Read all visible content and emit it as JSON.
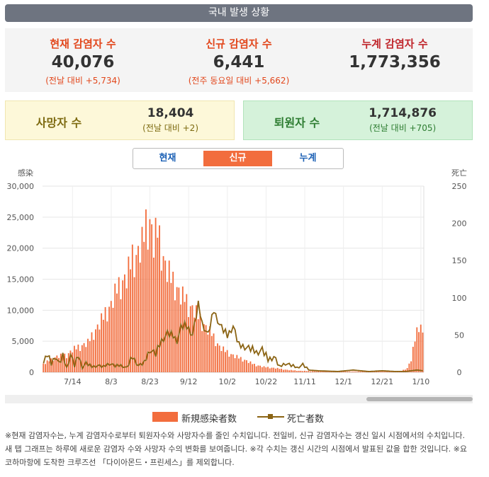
{
  "header": {
    "title": "국내 발생 상황"
  },
  "summary": {
    "current": {
      "label": "현재 감염자 수",
      "value": "40,076",
      "sub": "(전날 대비 +5,734)"
    },
    "new": {
      "label": "신규 감염자 수",
      "value": "6,441",
      "sub": "(전주 동요일 대비 +5,662)"
    },
    "total": {
      "label": "누계 감염자 수",
      "value": "1,773,356"
    }
  },
  "deaths": {
    "label": "사망자 수",
    "value": "18,404",
    "sub": "(전날 대비 +2)"
  },
  "recovered": {
    "label": "퇴원자 수",
    "value": "1,714,876",
    "sub": "(전날 대비 +705)"
  },
  "tabs": {
    "current": "현재",
    "new": "신규",
    "total": "누계",
    "active": "new"
  },
  "legend": {
    "bars": "新規感染者数",
    "line": "死亡者数"
  },
  "note": "※현재 감염자수는, 누계 감염자수로부터 퇴원자수와 사망자수를 줄인 수치입니다. 전일비, 신규 감염자수는 갱신 일시 시점에서의 수치입니다. 새 탭 그래프는 하루에 새로운 감염자 수와 사망자 수의 변화를 보여줍니다. ※각 수치는 갱신 시간의 시점에서 발표된 값을 합한 것입니다. ※요코하마항에 도착한 크루즈선 「다이아몬드・프린세스」를 제외합니다.",
  "colors": {
    "bar": "#f26d3d",
    "line": "#8b6414",
    "red": "#e2471c",
    "darkred": "#c0262c",
    "olive": "#7d6a10",
    "green": "#2e7d32"
  },
  "chart_data": {
    "type": "bar",
    "title": "",
    "left_axis_label": "感染",
    "right_axis_label": "死亡",
    "ylim_left": [
      0,
      30000
    ],
    "ylim_right": [
      0,
      250
    ],
    "left_ticks": [
      "0",
      "5,000",
      "10,000",
      "15,000",
      "20,000",
      "25,000",
      "30,000"
    ],
    "right_ticks": [
      "0",
      "50",
      "100",
      "150",
      "200",
      "250"
    ],
    "x_ticks": [
      "7/14",
      "8/3",
      "8/23",
      "9/12",
      "10/2",
      "10/22",
      "11/11",
      "12/1",
      "12/21",
      "1/10"
    ],
    "x_tick_index": [
      15,
      35,
      55,
      75,
      95,
      115,
      135,
      155,
      175,
      195
    ],
    "bar_anchors": [
      [
        0,
        1400
      ],
      [
        7,
        2700
      ],
      [
        12,
        2900
      ],
      [
        15,
        3800
      ],
      [
        19,
        4400
      ],
      [
        23,
        5000
      ],
      [
        26,
        6700
      ],
      [
        29,
        8200
      ],
      [
        32,
        10000
      ],
      [
        35,
        11500
      ],
      [
        38,
        14100
      ],
      [
        40,
        15100
      ],
      [
        43,
        16100
      ],
      [
        46,
        19600
      ],
      [
        48,
        19700
      ],
      [
        51,
        21700
      ],
      [
        53,
        25000
      ],
      [
        55,
        25700
      ],
      [
        57,
        22000
      ],
      [
        59,
        24100
      ],
      [
        61,
        21000
      ],
      [
        63,
        18000
      ],
      [
        66,
        16000
      ],
      [
        69,
        14300
      ],
      [
        71,
        13000
      ],
      [
        73,
        12600
      ],
      [
        75,
        11400
      ],
      [
        78,
        10500
      ],
      [
        81,
        9000
      ],
      [
        84,
        7600
      ],
      [
        87,
        6500
      ],
      [
        91,
        4300
      ],
      [
        95,
        3400
      ],
      [
        99,
        2700
      ],
      [
        104,
        2100
      ],
      [
        109,
        1300
      ],
      [
        114,
        900
      ],
      [
        120,
        700
      ],
      [
        126,
        400
      ],
      [
        132,
        250
      ],
      [
        140,
        170
      ],
      [
        150,
        130
      ],
      [
        165,
        130
      ],
      [
        180,
        150
      ],
      [
        185,
        220
      ],
      [
        188,
        700
      ],
      [
        190,
        2100
      ],
      [
        192,
        5500
      ],
      [
        194,
        8300
      ],
      [
        195,
        8000
      ],
      [
        196,
        6400
      ]
    ],
    "bar_note": "new infections per day, read from chart; values interpolated between anchor days",
    "death_anchors": [
      [
        0,
        12
      ],
      [
        2,
        24
      ],
      [
        4,
        10
      ],
      [
        6,
        22
      ],
      [
        8,
        12
      ],
      [
        10,
        20
      ],
      [
        12,
        6
      ],
      [
        14,
        24
      ],
      [
        16,
        8
      ],
      [
        18,
        22
      ],
      [
        20,
        6
      ],
      [
        22,
        12
      ],
      [
        25,
        7
      ],
      [
        28,
        9
      ],
      [
        31,
        7
      ],
      [
        34,
        12
      ],
      [
        37,
        8
      ],
      [
        40,
        9
      ],
      [
        43,
        6
      ],
      [
        46,
        20
      ],
      [
        49,
        9
      ],
      [
        52,
        12
      ],
      [
        55,
        30
      ],
      [
        58,
        24
      ],
      [
        61,
        42
      ],
      [
        64,
        52
      ],
      [
        67,
        48
      ],
      [
        69,
        42
      ],
      [
        71,
        60
      ],
      [
        73,
        62
      ],
      [
        75,
        58
      ],
      [
        77,
        50
      ],
      [
        80,
        90
      ],
      [
        82,
        65
      ],
      [
        85,
        50
      ],
      [
        88,
        82
      ],
      [
        91,
        64
      ],
      [
        95,
        48
      ],
      [
        98,
        62
      ],
      [
        101,
        35
      ],
      [
        104,
        34
      ],
      [
        107,
        31
      ],
      [
        110,
        26
      ],
      [
        113,
        30
      ],
      [
        116,
        16
      ],
      [
        119,
        21
      ],
      [
        122,
        7
      ],
      [
        125,
        12
      ],
      [
        128,
        9
      ],
      [
        131,
        6
      ],
      [
        134,
        10
      ],
      [
        137,
        3
      ],
      [
        142,
        2
      ],
      [
        152,
        1
      ],
      [
        160,
        3
      ],
      [
        168,
        1
      ],
      [
        175,
        2
      ],
      [
        182,
        1
      ],
      [
        187,
        1
      ],
      [
        190,
        2
      ],
      [
        193,
        3
      ],
      [
        196,
        2
      ]
    ],
    "death_note": "deaths per day, read from chart; values interpolated between anchor days",
    "days": 197,
    "first_date": "6/29"
  }
}
